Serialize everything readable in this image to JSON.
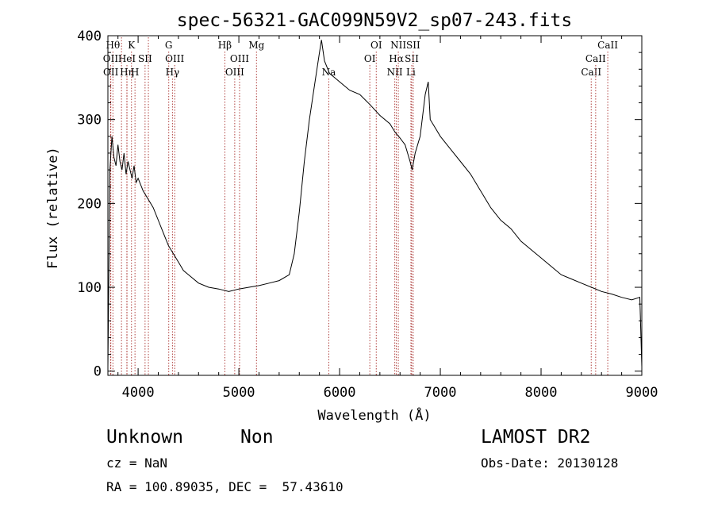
{
  "chart_data": {
    "type": "line",
    "title": "spec-56321-GAC099N59V2_sp07-243.fits",
    "xlabel": "Wavelength (Å)",
    "ylabel": "Flux (relative)",
    "xlim": [
      3700,
      9000
    ],
    "ylim": [
      -5,
      400
    ],
    "x_ticks": [
      4000,
      5000,
      6000,
      7000,
      8000,
      9000
    ],
    "y_ticks": [
      0,
      100,
      200,
      300,
      400
    ],
    "grid": false,
    "line_color": "#000000",
    "marker_color": "#b0413e",
    "series": [
      {
        "x": [
          3700,
          3720,
          3740,
          3760,
          3780,
          3800,
          3820,
          3840,
          3860,
          3880,
          3900,
          3920,
          3940,
          3960,
          3980,
          4000,
          4050,
          4100,
          4150,
          4200,
          4250,
          4300,
          4350,
          4400,
          4450,
          4500,
          4600,
          4700,
          4800,
          4900,
          5000,
          5100,
          5200,
          5300,
          5400,
          5500,
          5550,
          5600,
          5650,
          5700,
          5750,
          5800,
          5820,
          5850,
          5900,
          5950,
          6000,
          6050,
          6100,
          6200,
          6300,
          6400,
          6500,
          6550,
          6600,
          6650,
          6700,
          6720,
          6750,
          6800,
          6850,
          6880,
          6900,
          6950,
          7000,
          7100,
          7200,
          7300,
          7400,
          7500,
          7600,
          7700,
          7800,
          7900,
          8000,
          8100,
          8200,
          8300,
          8400,
          8500,
          8600,
          8700,
          8800,
          8900,
          8980,
          9000
        ],
        "y": [
          5,
          240,
          280,
          255,
          245,
          270,
          250,
          240,
          260,
          235,
          250,
          240,
          230,
          245,
          225,
          230,
          215,
          205,
          195,
          180,
          165,
          150,
          140,
          130,
          120,
          115,
          105,
          100,
          98,
          95,
          98,
          100,
          102,
          105,
          108,
          115,
          140,
          190,
          250,
          300,
          340,
          380,
          395,
          370,
          355,
          350,
          345,
          340,
          335,
          330,
          318,
          305,
          295,
          285,
          278,
          270,
          250,
          240,
          260,
          280,
          330,
          345,
          300,
          290,
          280,
          265,
          250,
          235,
          215,
          195,
          180,
          170,
          155,
          145,
          135,
          125,
          115,
          110,
          105,
          100,
          95,
          92,
          88,
          85,
          88,
          5
        ]
      }
    ],
    "lines": [
      {
        "wl": 3750,
        "label": "Hθ",
        "row": 1
      },
      {
        "wl": 3727,
        "label": "OII",
        "row": 2
      },
      {
        "wl": 3729,
        "label": "OII",
        "row": 3
      },
      {
        "wl": 3835,
        "label": "",
        "row": 0
      },
      {
        "wl": 3889,
        "label": "HeI",
        "row": 2
      },
      {
        "wl": 3889,
        "label": "Hη",
        "row": 3
      },
      {
        "wl": 3934,
        "label": "K",
        "row": 1
      },
      {
        "wl": 3969,
        "label": "H",
        "row": 3
      },
      {
        "wl": 4069,
        "label": "SII",
        "row": 2
      },
      {
        "wl": 4102,
        "label": "",
        "row": 0
      },
      {
        "wl": 4304,
        "label": "G",
        "row": 1
      },
      {
        "wl": 4341,
        "label": "Hγ",
        "row": 3
      },
      {
        "wl": 4363,
        "label": "OIII",
        "row": 2
      },
      {
        "wl": 4861,
        "label": "Hβ",
        "row": 1
      },
      {
        "wl": 4959,
        "label": "OIII",
        "row": 3
      },
      {
        "wl": 5007,
        "label": "OIII",
        "row": 2
      },
      {
        "wl": 5175,
        "label": "Mg",
        "row": 1
      },
      {
        "wl": 5893,
        "label": "Na",
        "row": 3
      },
      {
        "wl": 6300,
        "label": "OI",
        "row": 2
      },
      {
        "wl": 6364,
        "label": "OI",
        "row": 1
      },
      {
        "wl": 6548,
        "label": "NII",
        "row": 3
      },
      {
        "wl": 6563,
        "label": "Hα",
        "row": 2
      },
      {
        "wl": 6583,
        "label": "NII",
        "row": 1
      },
      {
        "wl": 6708,
        "label": "Li",
        "row": 3
      },
      {
        "wl": 6716,
        "label": "SII",
        "row": 2
      },
      {
        "wl": 6731,
        "label": "SII",
        "row": 1
      },
      {
        "wl": 8498,
        "label": "CaII",
        "row": 3
      },
      {
        "wl": 8542,
        "label": "CaII",
        "row": 2
      },
      {
        "wl": 8662,
        "label": "CaII",
        "row": 1
      }
    ]
  },
  "object_class": "Unknown",
  "object_subclass": "Non",
  "survey": "LAMOST DR2",
  "cz_text": "cz = NaN",
  "obs_date_text": "Obs-Date: 20130128",
  "coords_text": "RA = 100.89035, DEC =  57.43610"
}
